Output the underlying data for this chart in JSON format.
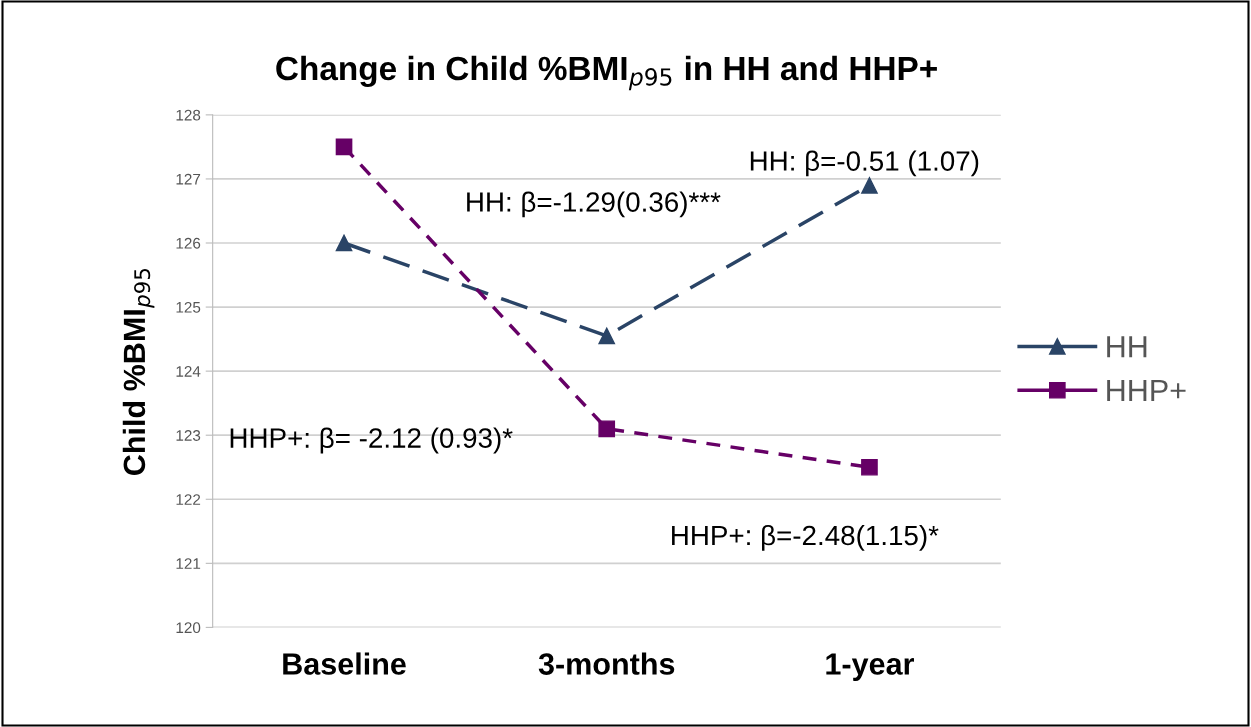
{
  "chart_data": {
    "type": "line",
    "title": "Change in Child %BMI$_{p95}$ in HH and HHP+",
    "ylabel": "Child %BMI$_{p95}$",
    "categories": [
      "Baseline",
      "3-months",
      "1-year"
    ],
    "series": [
      {
        "name": "HH",
        "color": "#2a4466",
        "values": [
          126.0,
          124.55,
          126.9
        ],
        "marker": "triangle",
        "line_style": "dashed"
      },
      {
        "name": "HHP+",
        "color": "#660066",
        "values": [
          127.5,
          123.1,
          122.5
        ],
        "marker": "square",
        "line_style": "dotted"
      }
    ],
    "ylim": [
      120,
      128
    ],
    "yticks": [
      120,
      121,
      122,
      123,
      124,
      125,
      126,
      127,
      128
    ],
    "grid": "y",
    "legend": "right",
    "annotations": [
      "HH: β=-0.51 (1.07)",
      "HH: β=-1.29(0.36)***",
      "HHP+: β= -2.12 (0.93)*",
      "HHP+: β=-2.48(1.15)*"
    ]
  }
}
